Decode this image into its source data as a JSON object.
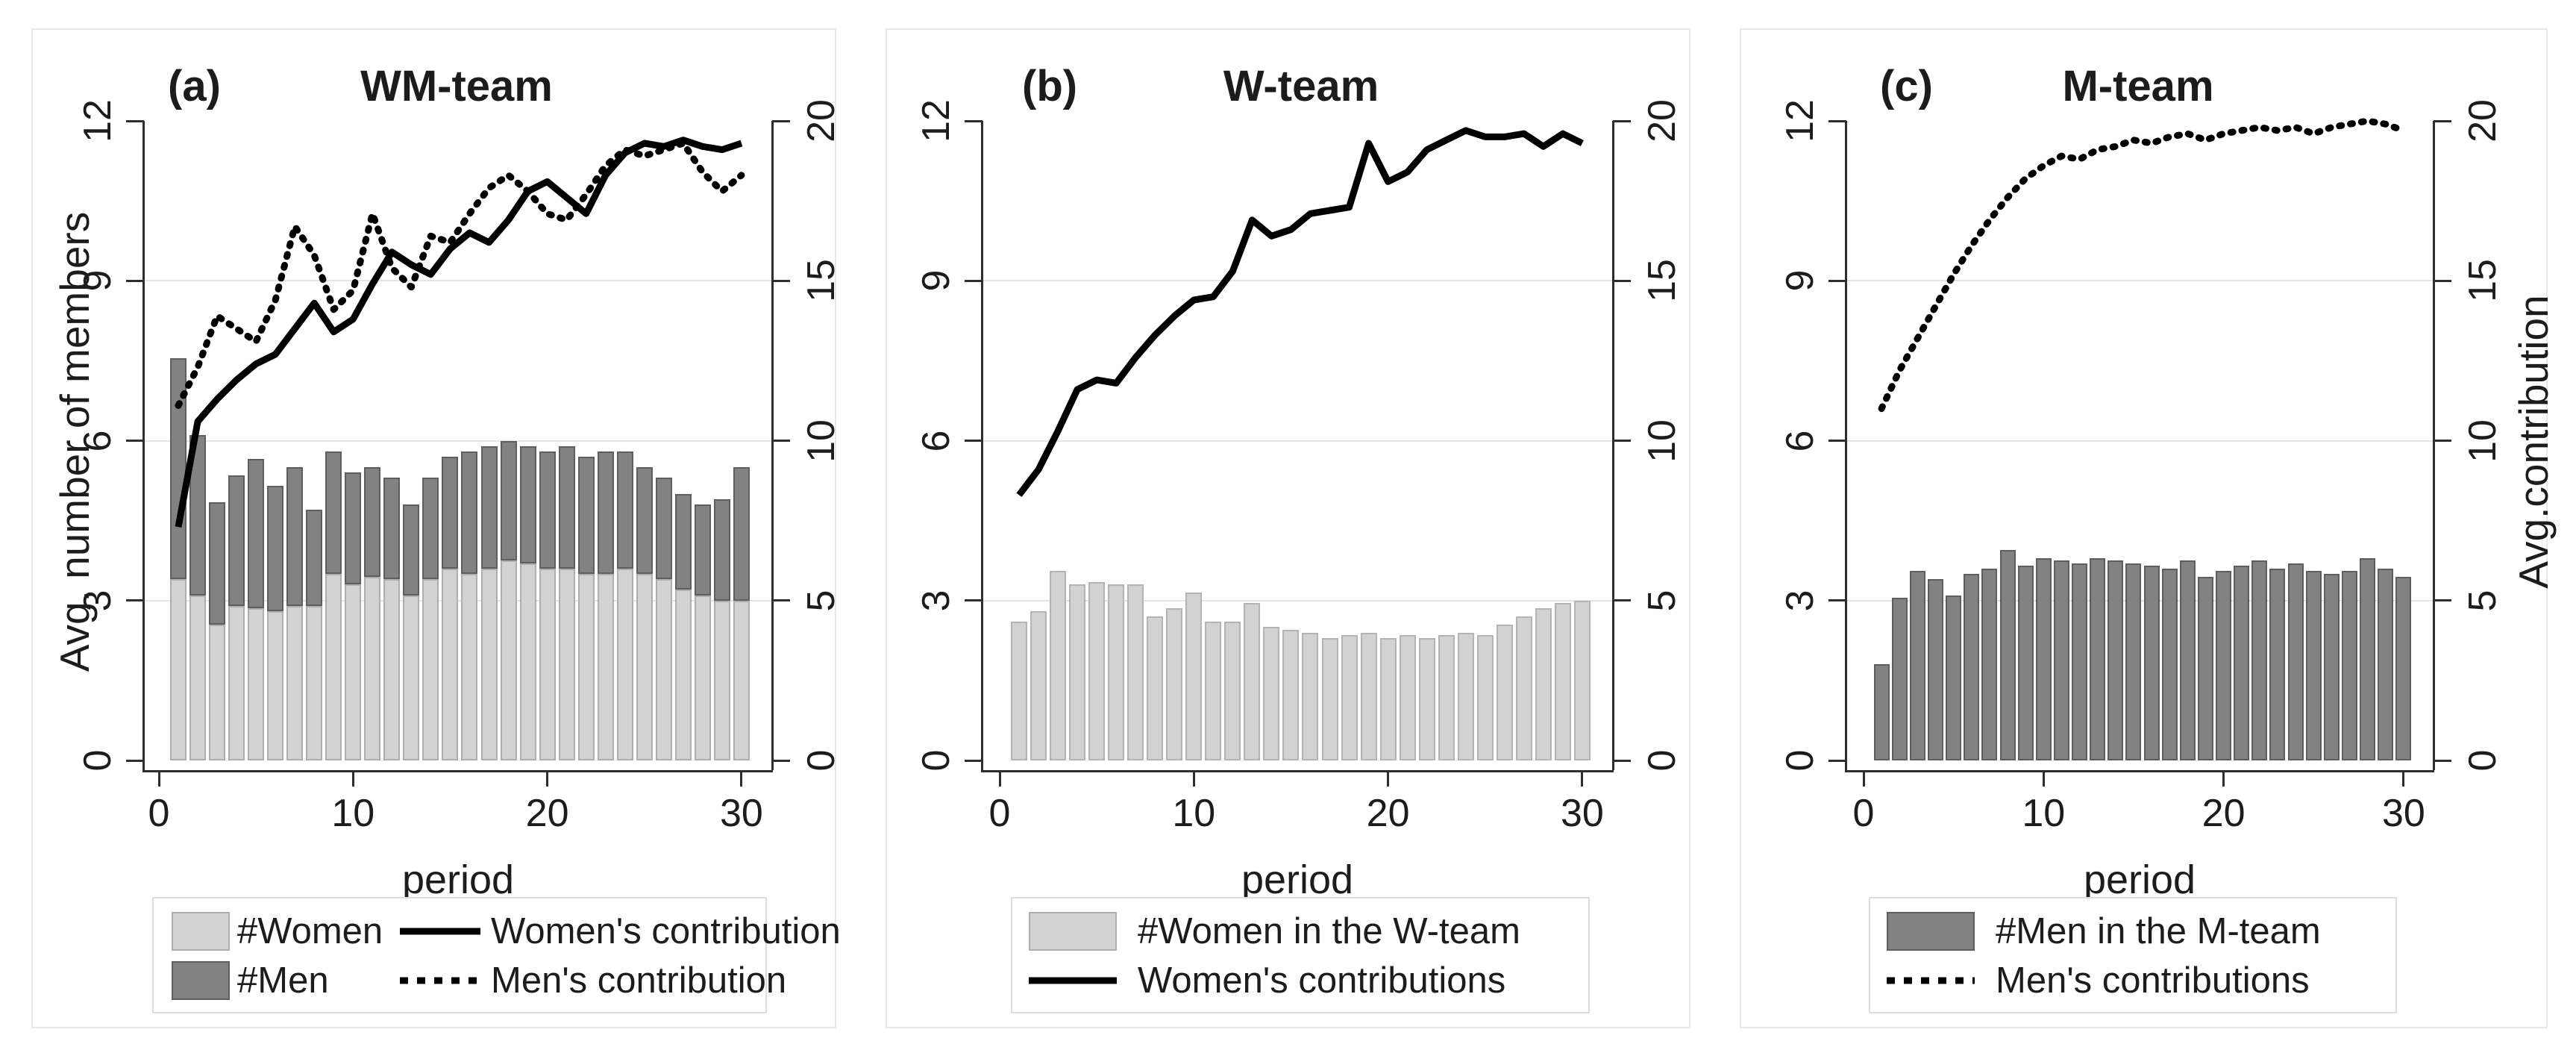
{
  "figure": {
    "x_axis_title": "period",
    "left_axis_title": "Avg. number of members",
    "right_axis_title": "Avg.contribution",
    "colors": {
      "women_bar": "#d2d2d2",
      "women_bar_border": "#aeaeae",
      "men_bar": "#828282",
      "men_bar_border": "#5e5e5e",
      "line": "#000000",
      "grid": "#e5e5e5",
      "axis": "#2e2e2e"
    }
  },
  "chart_data": [
    {
      "type": "bar-line",
      "panel": "(a)",
      "title": "WM-team",
      "xlabel": "period",
      "ylabel_left": "Avg. number of members",
      "ylabel_right": "",
      "ylim_left": [
        0,
        12
      ],
      "ylim_right": [
        0,
        20
      ],
      "y_ticks_left": [
        0,
        3,
        6,
        9,
        12
      ],
      "y_ticks_right": [
        0,
        5,
        10,
        15,
        20
      ],
      "x_ticks": [
        0,
        10,
        20,
        30
      ],
      "grid_values": [
        3,
        6,
        9
      ],
      "x": [
        1,
        2,
        3,
        4,
        5,
        6,
        7,
        8,
        9,
        10,
        11,
        12,
        13,
        14,
        15,
        16,
        17,
        18,
        19,
        20,
        21,
        22,
        23,
        24,
        25,
        26,
        27,
        28,
        29,
        30
      ],
      "bars": [
        {
          "name": "#Women",
          "stacked": true,
          "color": "#d2d2d2",
          "border": "#aeaeae",
          "values": [
            3.4,
            3.1,
            2.55,
            2.9,
            2.85,
            2.8,
            2.9,
            2.9,
            3.5,
            3.3,
            3.45,
            3.4,
            3.1,
            3.4,
            3.6,
            3.5,
            3.6,
            3.75,
            3.7,
            3.6,
            3.6,
            3.5,
            3.5,
            3.6,
            3.5,
            3.4,
            3.2,
            3.1,
            3.0,
            3.0
          ]
        },
        {
          "name": "#Men",
          "stacked": true,
          "color": "#828282",
          "border": "#5e5e5e",
          "values": [
            4.15,
            3.0,
            2.3,
            2.45,
            2.8,
            2.35,
            2.6,
            1.8,
            2.3,
            2.1,
            2.05,
            1.9,
            1.7,
            1.9,
            2.1,
            2.3,
            2.3,
            2.25,
            2.2,
            2.2,
            2.3,
            2.2,
            2.3,
            2.2,
            2.0,
            1.9,
            1.8,
            1.7,
            1.9,
            2.5
          ]
        }
      ],
      "lines": [
        {
          "name": "Women's contribution",
          "style": "solid",
          "axis": "right",
          "values": [
            7.3,
            10.6,
            11.3,
            11.9,
            12.4,
            12.7,
            13.5,
            14.3,
            13.4,
            13.8,
            14.9,
            15.9,
            15.5,
            15.2,
            16.0,
            16.5,
            16.2,
            16.9,
            17.8,
            18.1,
            17.6,
            17.1,
            18.3,
            19.0,
            19.3,
            19.2,
            19.4,
            19.2,
            19.1,
            19.3
          ]
        },
        {
          "name": "Men's contribution",
          "style": "dotted",
          "axis": "right",
          "values": [
            11.1,
            12.3,
            13.9,
            13.5,
            13.1,
            14.4,
            16.7,
            15.8,
            14.1,
            14.7,
            17.1,
            15.4,
            14.8,
            16.4,
            16.2,
            17.1,
            17.9,
            18.3,
            17.8,
            17.1,
            16.9,
            17.7,
            18.6,
            19.1,
            18.9,
            19.1,
            19.3,
            18.4,
            17.8,
            18.3
          ]
        }
      ],
      "legend": [
        {
          "marker": "bar-light",
          "label": "#Women"
        },
        {
          "marker": "line-solid",
          "label": "Women's contribution"
        },
        {
          "marker": "bar-dark",
          "label": "#Men"
        },
        {
          "marker": "line-dotted",
          "label": "Men's contribution"
        }
      ]
    },
    {
      "type": "bar-line",
      "panel": "(b)",
      "title": "W-team",
      "xlabel": "period",
      "ylabel_left": "",
      "ylabel_right": "",
      "ylim_left": [
        0,
        12
      ],
      "ylim_right": [
        0,
        20
      ],
      "y_ticks_left": [
        0,
        3,
        6,
        9,
        12
      ],
      "y_ticks_right": [
        0,
        5,
        10,
        15,
        20
      ],
      "x_ticks": [
        0,
        10,
        20,
        30
      ],
      "grid_values": [
        3,
        6,
        9
      ],
      "x": [
        1,
        2,
        3,
        4,
        5,
        6,
        7,
        8,
        9,
        10,
        11,
        12,
        13,
        14,
        15,
        16,
        17,
        18,
        19,
        20,
        21,
        22,
        23,
        24,
        25,
        26,
        27,
        28,
        29,
        30
      ],
      "bars": [
        {
          "name": "#Women in the W-team",
          "stacked": false,
          "color": "#d2d2d2",
          "border": "#b4b4b4",
          "values": [
            2.6,
            2.8,
            3.55,
            3.3,
            3.35,
            3.3,
            3.3,
            2.7,
            2.85,
            3.15,
            2.6,
            2.6,
            2.95,
            2.5,
            2.45,
            2.4,
            2.3,
            2.35,
            2.4,
            2.3,
            2.35,
            2.3,
            2.35,
            2.4,
            2.35,
            2.55,
            2.7,
            2.85,
            2.95,
            3.0
          ]
        }
      ],
      "lines": [
        {
          "name": "Women's contributions",
          "style": "solid",
          "axis": "right",
          "values": [
            8.3,
            9.1,
            10.3,
            11.6,
            11.9,
            11.8,
            12.6,
            13.3,
            13.9,
            14.4,
            14.5,
            15.3,
            16.9,
            16.4,
            16.6,
            17.1,
            17.2,
            17.3,
            19.3,
            18.1,
            18.4,
            19.1,
            19.4,
            19.7,
            19.5,
            19.5,
            19.6,
            19.2,
            19.6,
            19.3
          ]
        }
      ],
      "legend": [
        {
          "marker": "bar-light",
          "label": "#Women in the W-team"
        },
        {
          "marker": "line-solid",
          "label": "Women's contributions"
        }
      ]
    },
    {
      "type": "bar-line",
      "panel": "(c)",
      "title": "M-team",
      "xlabel": "period",
      "ylabel_left": "",
      "ylabel_right": "Avg.contribution",
      "ylim_left": [
        0,
        12
      ],
      "ylim_right": [
        0,
        20
      ],
      "y_ticks_left": [
        0,
        3,
        6,
        9,
        12
      ],
      "y_ticks_right": [
        0,
        5,
        10,
        15,
        20
      ],
      "x_ticks": [
        0,
        10,
        20,
        30
      ],
      "grid_values": [
        3,
        6,
        9
      ],
      "x": [
        1,
        2,
        3,
        4,
        5,
        6,
        7,
        8,
        9,
        10,
        11,
        12,
        13,
        14,
        15,
        16,
        17,
        18,
        19,
        20,
        21,
        22,
        23,
        24,
        25,
        26,
        27,
        28,
        29,
        30
      ],
      "bars": [
        {
          "name": "#Men in the M-team",
          "stacked": false,
          "color": "#828282",
          "border": "#5e5e5e",
          "values": [
            1.8,
            3.05,
            3.55,
            3.4,
            3.1,
            3.5,
            3.6,
            3.95,
            3.65,
            3.8,
            3.75,
            3.7,
            3.8,
            3.75,
            3.7,
            3.65,
            3.6,
            3.75,
            3.45,
            3.55,
            3.65,
            3.75,
            3.6,
            3.7,
            3.55,
            3.5,
            3.55,
            3.8,
            3.6,
            3.45
          ]
        }
      ],
      "lines": [
        {
          "name": "Men's contributions",
          "style": "dotted",
          "axis": "right",
          "values": [
            11.0,
            12.2,
            13.2,
            14.2,
            15.2,
            16.1,
            16.9,
            17.6,
            18.2,
            18.6,
            18.9,
            18.8,
            19.1,
            19.2,
            19.4,
            19.3,
            19.5,
            19.6,
            19.4,
            19.6,
            19.7,
            19.8,
            19.7,
            19.8,
            19.6,
            19.8,
            19.9,
            20.0,
            19.9,
            19.7
          ]
        }
      ],
      "legend": [
        {
          "marker": "bar-dark",
          "label": "#Men in the M-team"
        },
        {
          "marker": "line-dotted",
          "label": "Men's contributions"
        }
      ]
    }
  ]
}
